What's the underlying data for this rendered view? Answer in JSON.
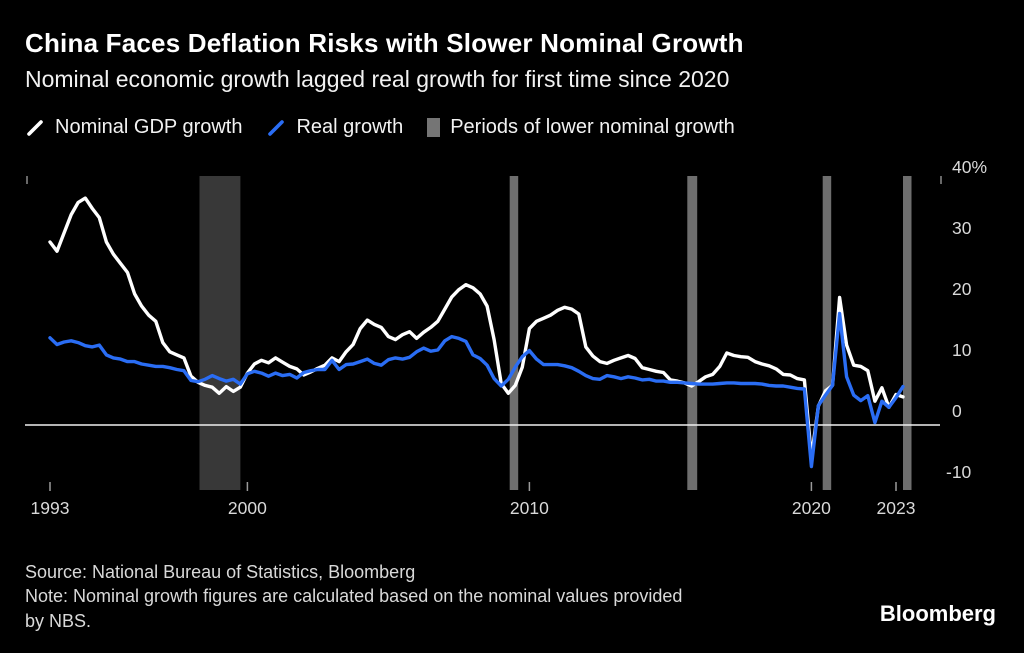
{
  "chart_data": {
    "type": "line",
    "title": "China Faces Deflation Risks with Slower Nominal Growth",
    "subtitle": "Nominal economic growth lagged real growth for first time since 2020",
    "legend": [
      {
        "label": "Nominal GDP growth",
        "swatch": "slash",
        "color": "#ffffff"
      },
      {
        "label": "Real growth",
        "swatch": "slash",
        "color": "#2a6df4"
      },
      {
        "label": "Periods of lower nominal growth",
        "swatch": "box",
        "color": "#757575"
      }
    ],
    "x_axis": {
      "tick_years": [
        1993,
        2000,
        2010,
        2020,
        2023
      ],
      "tick_labels": [
        "1993",
        "2000",
        "2010",
        "2020",
        "2023"
      ]
    },
    "y_axis": {
      "tick_values": [
        40,
        30,
        20,
        10,
        0,
        -10
      ],
      "tick_labels": [
        "40%",
        "30",
        "20",
        "10",
        "0",
        "-10"
      ]
    },
    "x_start": 1993,
    "x_step": 0.25,
    "series": [
      {
        "name": "Nominal GDP growth",
        "color": "#ffffff",
        "values": [
          30,
          28.5,
          31.5,
          34.5,
          36.5,
          37.2,
          35.5,
          34,
          30,
          28,
          26.5,
          25,
          21.5,
          19.5,
          18,
          17,
          13.5,
          12,
          11.5,
          11,
          8,
          7,
          6.5,
          6.2,
          5.2,
          6.3,
          5.5,
          6.2,
          8.5,
          10,
          10.6,
          10.2,
          11,
          10.3,
          9.6,
          9.2,
          8.2,
          8.7,
          9.3,
          9.8,
          11,
          10.4,
          12,
          13.2,
          15.8,
          17.2,
          16.5,
          16,
          14.5,
          14,
          14.8,
          15.3,
          14.2,
          15.2,
          16,
          17,
          19,
          21,
          22.2,
          23,
          22.5,
          21.5,
          19.5,
          14,
          6.8,
          5.2,
          6.5,
          9.5,
          15.8,
          17,
          17.5,
          18,
          18.8,
          19.3,
          19,
          18.2,
          12.8,
          11.3,
          10.4,
          10.1,
          10.6,
          11,
          11.4,
          10.9,
          9.4,
          9.1,
          8.8,
          8.6,
          7.4,
          7.2,
          6.9,
          6.4,
          7.1,
          7.9,
          8.3,
          9.6,
          11.8,
          11.4,
          11.2,
          11.1,
          10.4,
          10,
          9.7,
          9.2,
          8.3,
          8.2,
          7.6,
          7.4,
          -5.3,
          3.1,
          5.6,
          6.5,
          20.9,
          13.1,
          9.8,
          9.6,
          8.9,
          3.9,
          6.1,
          2.9,
          5,
          4.6
        ]
      },
      {
        "name": "Real growth",
        "color": "#2a6df4",
        "values": [
          14.3,
          13.2,
          13.6,
          13.8,
          13.5,
          13,
          12.8,
          13.1,
          11.5,
          11,
          10.8,
          10.4,
          10.4,
          10,
          9.8,
          9.6,
          9.6,
          9.4,
          9.1,
          8.9,
          7.3,
          7.1,
          7.5,
          8.1,
          7.6,
          7.2,
          7.5,
          6.7,
          8.4,
          8.8,
          8.5,
          8,
          8.5,
          8.1,
          8.3,
          7.7,
          8.6,
          8.9,
          9.1,
          9.1,
          10.6,
          9.1,
          9.9,
          10,
          10.4,
          10.8,
          10.1,
          9.8,
          10.7,
          11,
          10.8,
          11.1,
          12,
          12.6,
          12.1,
          12.3,
          13.8,
          14.5,
          14.2,
          13.7,
          11.5,
          10.9,
          9.8,
          7.6,
          6.4,
          7.5,
          9.5,
          11.2,
          12.2,
          10.8,
          9.9,
          9.9,
          9.9,
          9.7,
          9.4,
          8.8,
          8.1,
          7.6,
          7.5,
          8.1,
          7.9,
          7.6,
          7.9,
          7.7,
          7.4,
          7.5,
          7.2,
          7.2,
          7,
          7,
          6.9,
          6.8,
          6.7,
          6.7,
          6.7,
          6.8,
          6.9,
          6.9,
          6.8,
          6.8,
          6.8,
          6.7,
          6.5,
          6.4,
          6.4,
          6.2,
          6,
          5.9,
          -6.8,
          3.2,
          4.9,
          6.5,
          18.3,
          7.9,
          4.9,
          4,
          4.8,
          0.4,
          3.9,
          2.9,
          4.5,
          6.3
        ]
      }
    ],
    "bands": [
      {
        "x0": 1998.3,
        "x1": 1999.75,
        "color": "#383838"
      },
      {
        "x0": 2009.3,
        "x1": 2009.6,
        "color": "#6e6e6e"
      },
      {
        "x0": 2015.6,
        "x1": 2015.95,
        "color": "#6e6e6e"
      },
      {
        "x0": 2020.4,
        "x1": 2020.7,
        "color": "#6e6e6e"
      },
      {
        "x0": 2023.25,
        "x1": 2023.55,
        "color": "#6e6e6e"
      }
    ],
    "zero_line_color": "#f0f0f0",
    "axis_label_color": "#d9d9d9",
    "footer": {
      "source": "Source: National Bureau of Statistics, Bloomberg",
      "note": "Note: Nominal growth figures are calculated based on the nominal values provided\nby NBS."
    },
    "brand": "Bloomberg"
  }
}
